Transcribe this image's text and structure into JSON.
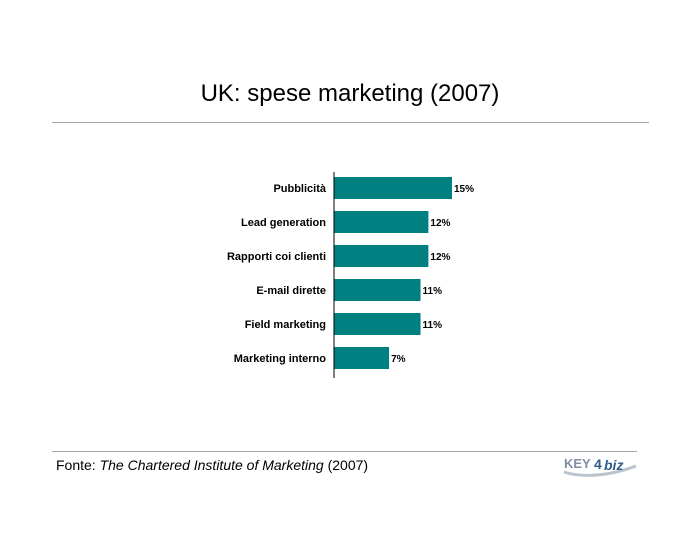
{
  "chart_data": {
    "type": "bar",
    "orientation": "horizontal",
    "title": "UK: spese marketing (2007)",
    "categories": [
      "Pubblicità",
      "Lead generation",
      "Rapporti coi clienti",
      "E-mail dirette",
      "Field marketing",
      "Marketing interno"
    ],
    "values": [
      15,
      12,
      12,
      11,
      11,
      7
    ],
    "data_labels": [
      "15%",
      "12%",
      "12%",
      "11%",
      "11%",
      "7%"
    ],
    "value_unit": "%",
    "xlim": [
      0,
      15
    ],
    "grid": false,
    "legend": "none",
    "colors": {
      "bar": "#008080",
      "axis": "#000000"
    }
  },
  "footer": {
    "source_prefix": "Fonte: ",
    "source_title": "The Chartered Institute of Marketing",
    "source_suffix": " (2007)",
    "logo_text_left": "KEY",
    "logo_text_mid": "4",
    "logo_text_right": "biz"
  }
}
